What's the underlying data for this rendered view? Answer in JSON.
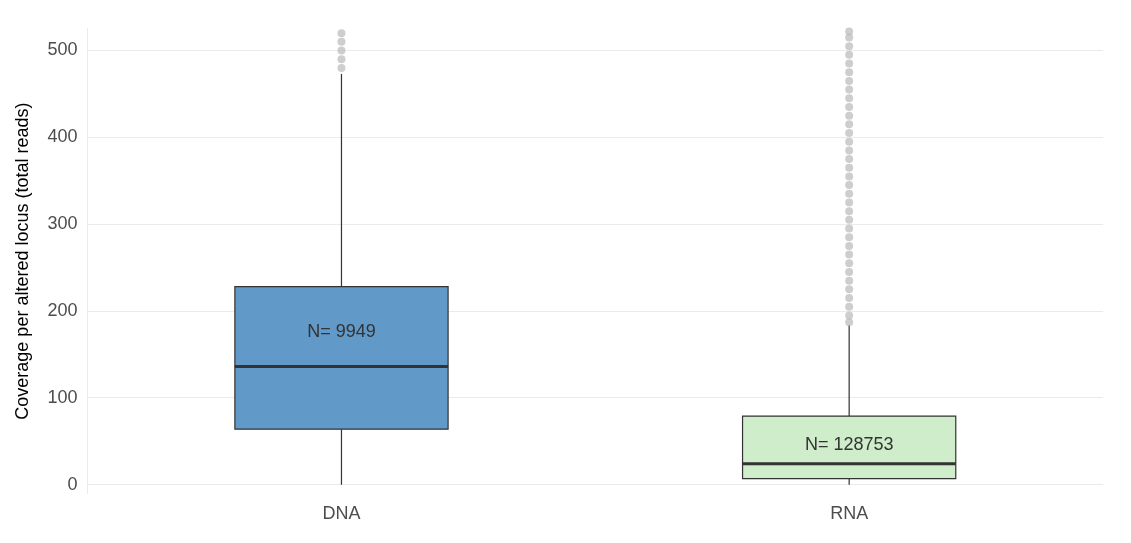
{
  "chart_data": {
    "type": "box",
    "ylabel": "Coverage per altered locus (total reads)",
    "categories": [
      "DNA",
      "RNA"
    ],
    "boxes": [
      {
        "low": 0,
        "q1": 64,
        "median": 136,
        "q3": 228,
        "high": 473,
        "outliers": [
          480,
          490,
          500,
          510,
          520
        ]
      },
      {
        "low": 0,
        "q1": 7,
        "median": 24,
        "q3": 79,
        "high": 184,
        "outliers": [
          187,
          195,
          205,
          215,
          225,
          235,
          245,
          255,
          265,
          275,
          285,
          295,
          305,
          315,
          325,
          335,
          345,
          355,
          365,
          375,
          385,
          395,
          405,
          415,
          425,
          435,
          445,
          455,
          465,
          475,
          485,
          495,
          505,
          515,
          522
        ]
      }
    ],
    "colors": [
      "#6199c9",
      "#cfeccb"
    ],
    "ylim": [
      -10,
      525
    ],
    "yticks": [
      0,
      100,
      200,
      300,
      400,
      500
    ],
    "grid": "y",
    "annotations": [
      "N= 9949",
      "N= 128753"
    ]
  }
}
